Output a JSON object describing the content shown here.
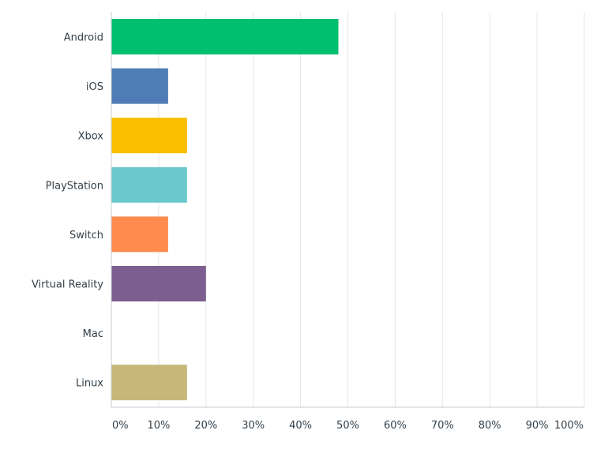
{
  "chart_data": {
    "type": "bar",
    "orientation": "horizontal",
    "categories": [
      "Android",
      "iOS",
      "Xbox",
      "PlayStation",
      "Switch",
      "Virtual Reality",
      "Mac",
      "Linux"
    ],
    "values": [
      48,
      12,
      16,
      16,
      12,
      20,
      0,
      16
    ],
    "colors": [
      "#00bf6f",
      "#507cb6",
      "#f9be00",
      "#6bc8cd",
      "#ff8b4f",
      "#7d5e90",
      "#d25f90",
      "#c7b879"
    ],
    "x_ticks": [
      "0%",
      "10%",
      "20%",
      "30%",
      "40%",
      "50%",
      "60%",
      "70%",
      "80%",
      "90%",
      "100%"
    ],
    "xlim": [
      0,
      100
    ],
    "unit": "%",
    "grid": true,
    "title": "",
    "xlabel": "",
    "ylabel": ""
  }
}
